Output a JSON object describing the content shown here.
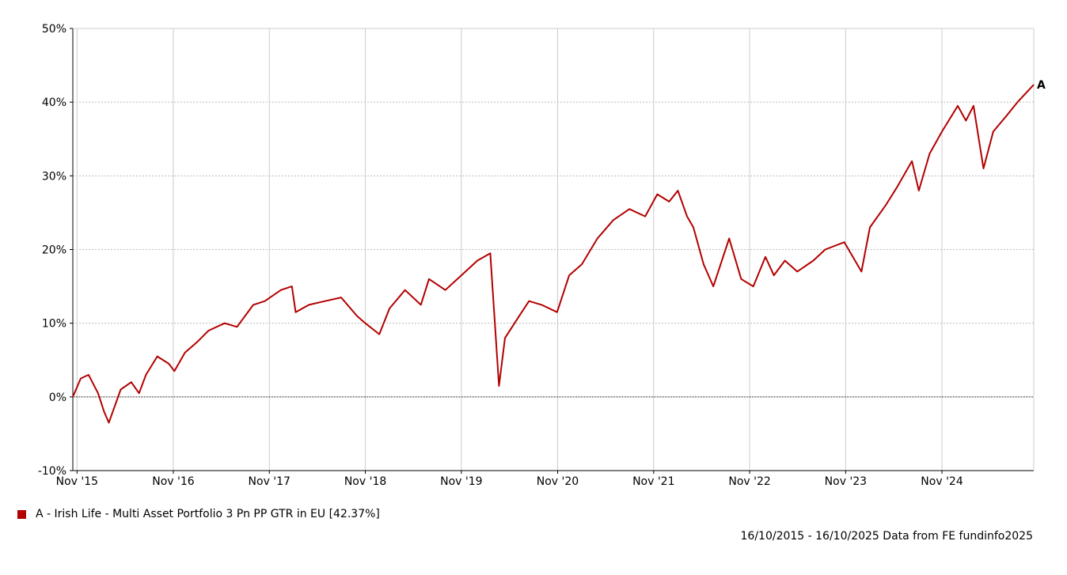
{
  "legend": {
    "label": "A - Irish Life - Multi Asset Portfolio 3 Pn PP GTR in EU [42.37%]"
  },
  "footer": {
    "source": "16/10/2015 - 16/10/2025 Data from FE fundinfo2025"
  },
  "colors": {
    "series": "#b30000",
    "grid": "#bbbbbb",
    "axis": "#000000"
  },
  "chart_data": {
    "type": "line",
    "x_start": "2015-10-16",
    "x_end": "2025-10-16",
    "x_tick_labels": [
      "Nov '15",
      "Nov '16",
      "Nov '17",
      "Nov '18",
      "Nov '19",
      "Nov '20",
      "Nov '21",
      "Nov '22",
      "Nov '23",
      "Nov '24"
    ],
    "y_tick_labels": [
      "50%",
      "40%",
      "30%",
      "20%",
      "10%",
      "0%",
      "-10%"
    ],
    "ylim": [
      -10,
      50
    ],
    "grid": true,
    "end_label": "A",
    "series": [
      {
        "name": "A - Irish Life - Multi Asset Portfolio 3 Pn PP GTR in EU",
        "x": [
          "2015-10-16",
          "2015-11-15",
          "2015-12-15",
          "2016-01-20",
          "2016-02-12",
          "2016-03-01",
          "2016-04-15",
          "2016-05-25",
          "2016-06-24",
          "2016-07-20",
          "2016-09-01",
          "2016-10-15",
          "2016-11-05",
          "2016-12-15",
          "2017-02-01",
          "2017-03-15",
          "2017-05-15",
          "2017-07-01",
          "2017-09-01",
          "2017-10-15",
          "2017-12-15",
          "2018-01-26",
          "2018-02-09",
          "2018-04-01",
          "2018-06-01",
          "2018-08-01",
          "2018-09-30",
          "2018-11-01",
          "2018-12-24",
          "2019-02-01",
          "2019-04-01",
          "2019-05-31",
          "2019-07-01",
          "2019-09-01",
          "2019-11-01",
          "2020-01-01",
          "2020-02-19",
          "2020-03-23",
          "2020-04-15",
          "2020-06-08",
          "2020-07-15",
          "2020-09-01",
          "2020-10-30",
          "2020-12-15",
          "2021-02-01",
          "2021-04-01",
          "2021-06-01",
          "2021-08-01",
          "2021-09-30",
          "2021-11-15",
          "2021-12-30",
          "2022-02-01",
          "2022-03-08",
          "2022-04-01",
          "2022-05-10",
          "2022-06-16",
          "2022-08-15",
          "2022-09-30",
          "2022-11-15",
          "2022-12-31",
          "2023-02-01",
          "2023-03-15",
          "2023-05-01",
          "2023-07-01",
          "2023-08-15",
          "2023-10-27",
          "2023-12-31",
          "2024-02-01",
          "2024-04-01",
          "2024-05-15",
          "2024-07-10",
          "2024-08-05",
          "2024-09-15",
          "2024-11-01",
          "2024-12-31",
          "2025-01-31",
          "2025-03-01",
          "2025-04-08",
          "2025-05-15",
          "2025-07-01",
          "2025-08-15",
          "2025-10-16"
        ],
        "values": [
          0,
          2.5,
          3.0,
          0.5,
          -2.0,
          -3.5,
          1.0,
          2.0,
          0.5,
          3.0,
          5.5,
          4.5,
          3.5,
          6.0,
          7.5,
          9.0,
          10.0,
          9.5,
          12.5,
          13.0,
          14.5,
          15.0,
          11.5,
          12.5,
          13.0,
          13.5,
          11.0,
          10.0,
          8.5,
          12.0,
          14.5,
          12.5,
          16.0,
          14.5,
          16.5,
          18.5,
          19.5,
          1.5,
          8.0,
          11.0,
          13.0,
          12.5,
          11.5,
          16.5,
          18.0,
          21.5,
          24.0,
          25.5,
          24.5,
          27.5,
          26.5,
          28.0,
          24.5,
          23.0,
          18.0,
          15.0,
          21.5,
          16.0,
          15.0,
          19.0,
          16.5,
          18.5,
          17.0,
          18.5,
          20.0,
          21.0,
          17.0,
          23.0,
          26.0,
          28.5,
          32.0,
          28.0,
          33.0,
          36.0,
          39.5,
          37.5,
          39.5,
          31.0,
          36.0,
          38.0,
          40.0,
          42.37
        ]
      }
    ]
  }
}
